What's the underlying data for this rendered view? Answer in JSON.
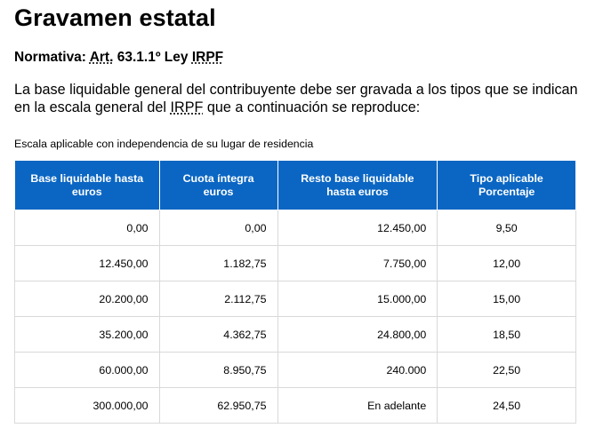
{
  "page": {
    "title": "Gravamen estatal",
    "normativa": {
      "label": "Normativa:",
      "art_abbr": "Art.",
      "ref": "63.1.1º Ley",
      "law_abbr": "IRPF"
    },
    "intro": {
      "before_abbr": "La base liquidable general del contribuyente debe ser gravada a los tipos que se indican en la escala general del ",
      "abbr": "IRPF",
      "after_abbr": " que a continuación se reproduce:"
    },
    "caption": "Escala aplicable con independencia de su lugar de residencia"
  },
  "table": {
    "headers": [
      "Base liquidable hasta euros",
      "Cuota íntegra euros",
      "Resto base liquidable hasta euros",
      "Tipo aplicable Porcentaje"
    ],
    "rows": [
      [
        "0,00",
        "0,00",
        "12.450,00",
        "9,50"
      ],
      [
        "12.450,00",
        "1.182,75",
        "7.750,00",
        "12,00"
      ],
      [
        "20.200,00",
        "2.112,75",
        "15.000,00",
        "15,00"
      ],
      [
        "35.200,00",
        "4.362,75",
        "24.800,00",
        "18,50"
      ],
      [
        "60.000,00",
        "8.950,75",
        "240.000",
        "22,50"
      ],
      [
        "300.000,00",
        "62.950,75",
        "En adelante",
        "24,50"
      ]
    ]
  },
  "colors": {
    "header_bg": "#0b66c3",
    "header_text": "#ffffff",
    "grid_line": "#d9d9d9"
  }
}
